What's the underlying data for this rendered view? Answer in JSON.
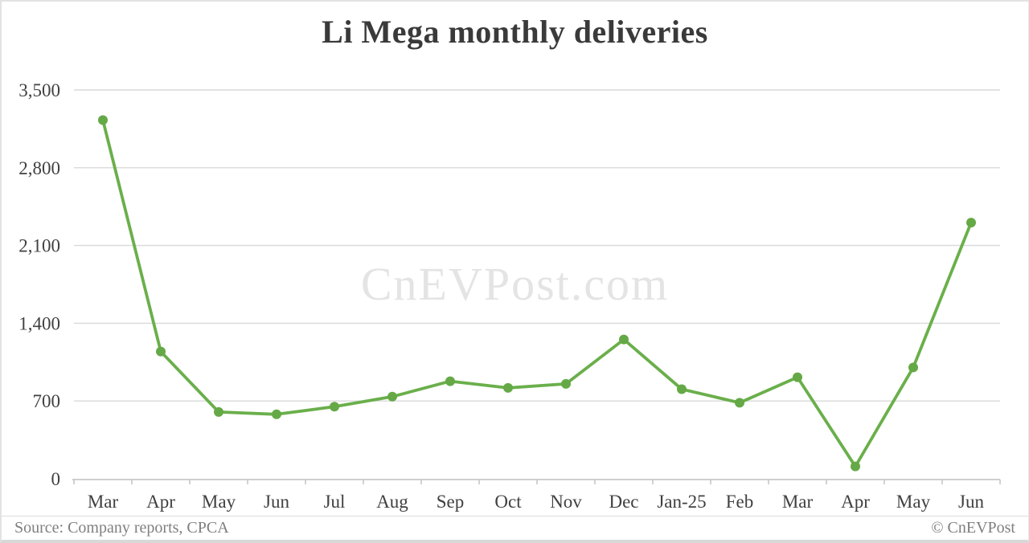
{
  "page": {
    "title": "Li Mega monthly deliveries",
    "watermark": "CnEVPost.com",
    "footer": {
      "source": "Source: Company reports, CPCA",
      "credit": "© CnEVPost"
    }
  },
  "colors": {
    "line": "#6aaf4b",
    "marker": "#65a947",
    "gridline": "#d9d9d9",
    "axis": "#bfbfbf",
    "tick_text": "#404040",
    "background": "#ffffff"
  },
  "chart_data": {
    "type": "line",
    "title": "Li Mega monthly deliveries",
    "categories": [
      "Mar",
      "Apr",
      "May",
      "Jun",
      "Jul",
      "Aug",
      "Sep",
      "Oct",
      "Nov",
      "Dec",
      "Jan-25",
      "Feb",
      "Mar",
      "Apr",
      "May",
      "Jun"
    ],
    "series": [
      {
        "name": "Li Mega monthly deliveries",
        "values": [
          3229,
          1145,
          601,
          580,
          649,
          739,
          878,
          818,
          854,
          1254,
          806,
          684,
          914,
          111,
          1002,
          2306
        ]
      }
    ],
    "xlabel": "",
    "ylabel": "",
    "ylim": [
      0,
      3500
    ],
    "yticks": [
      0,
      700,
      1400,
      2100,
      2800,
      3500
    ],
    "ytick_labels": [
      "0",
      "700",
      "1,400",
      "2,100",
      "2,800",
      "3,500"
    ],
    "grid": true,
    "legend": false,
    "marker": "circle",
    "annotations": []
  }
}
